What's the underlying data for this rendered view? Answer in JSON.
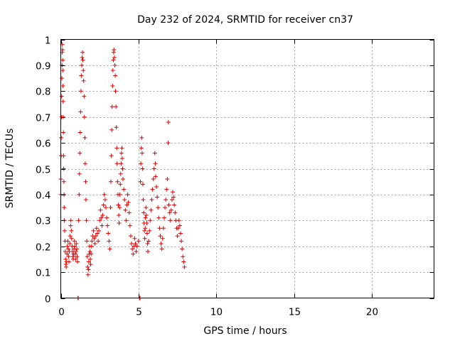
{
  "chart_data": {
    "type": "scatter",
    "title": "Day 232 of 2024, SRMTID for receiver cn37",
    "xlabel": "GPS time / hours",
    "ylabel": "SRMTID / TECUs",
    "xlim": [
      0,
      24
    ],
    "ylim": [
      0,
      1
    ],
    "xticks": [
      0,
      5,
      10,
      15,
      20
    ],
    "xtick_labels": [
      "0",
      "5",
      "10",
      "15",
      "20"
    ],
    "yticks": [
      0,
      0.1,
      0.2,
      0.3,
      0.4,
      0.5,
      0.6,
      0.7,
      0.8,
      0.9,
      1
    ],
    "ytick_labels": [
      "0",
      "0.1",
      "0.2",
      "0.3",
      "0.4",
      "0.5",
      "0.6",
      "0.7",
      "0.8",
      "0.9",
      "1"
    ],
    "grid": true,
    "marker": "+",
    "color": "#e00000",
    "series": [
      {
        "name": "cn37",
        "points": [
          [
            0.0,
            0.4
          ],
          [
            0.0,
            0.46
          ],
          [
            0.02,
            0.55
          ],
          [
            0.03,
            0.62
          ],
          [
            0.05,
            0.7
          ],
          [
            0.06,
            0.78
          ],
          [
            0.07,
            0.85
          ],
          [
            0.08,
            0.9
          ],
          [
            0.09,
            0.95
          ],
          [
            0.1,
            0.98
          ],
          [
            0.11,
            0.96
          ],
          [
            0.12,
            0.92
          ],
          [
            0.13,
            0.88
          ],
          [
            0.14,
            0.82
          ],
          [
            0.15,
            0.76
          ],
          [
            0.16,
            0.7
          ],
          [
            0.17,
            0.64
          ],
          [
            0.18,
            0.55
          ],
          [
            0.19,
            0.5
          ],
          [
            0.2,
            0.45
          ],
          [
            0.21,
            0.4
          ],
          [
            0.22,
            0.35
          ],
          [
            0.23,
            0.3
          ],
          [
            0.25,
            0.26
          ],
          [
            0.27,
            0.22
          ],
          [
            0.29,
            0.18
          ],
          [
            0.31,
            0.15
          ],
          [
            0.33,
            0.13
          ],
          [
            0.35,
            0.12
          ],
          [
            0.38,
            0.14
          ],
          [
            0.4,
            0.17
          ],
          [
            0.42,
            0.2
          ],
          [
            0.45,
            0.22
          ],
          [
            0.48,
            0.19
          ],
          [
            0.5,
            0.16
          ],
          [
            0.53,
            0.14
          ],
          [
            0.55,
            0.18
          ],
          [
            0.58,
            0.21
          ],
          [
            0.6,
            0.24
          ],
          [
            0.63,
            0.28
          ],
          [
            0.65,
            0.3
          ],
          [
            0.68,
            0.26
          ],
          [
            0.7,
            0.23
          ],
          [
            0.73,
            0.2
          ],
          [
            0.75,
            0.18
          ],
          [
            0.78,
            0.16
          ],
          [
            0.8,
            0.15
          ],
          [
            0.83,
            0.17
          ],
          [
            0.85,
            0.19
          ],
          [
            0.88,
            0.22
          ],
          [
            0.9,
            0.2
          ],
          [
            0.93,
            0.17
          ],
          [
            0.95,
            0.15
          ],
          [
            0.98,
            0.18
          ],
          [
            1.0,
            0.21
          ],
          [
            1.03,
            0.19
          ],
          [
            1.05,
            0.16
          ],
          [
            1.08,
            0.14
          ],
          [
            1.1,
            0.0
          ],
          [
            1.12,
            0.0
          ],
          [
            1.15,
            0.3
          ],
          [
            1.18,
            0.4
          ],
          [
            1.2,
            0.48
          ],
          [
            1.22,
            0.56
          ],
          [
            1.25,
            0.64
          ],
          [
            1.27,
            0.72
          ],
          [
            1.3,
            0.8
          ],
          [
            1.32,
            0.86
          ],
          [
            1.35,
            0.9
          ],
          [
            1.37,
            0.93
          ],
          [
            1.4,
            0.95
          ],
          [
            1.42,
            0.92
          ],
          [
            1.45,
            0.88
          ],
          [
            1.47,
            0.84
          ],
          [
            1.5,
            0.78
          ],
          [
            1.52,
            0.7
          ],
          [
            1.55,
            0.62
          ],
          [
            1.57,
            0.52
          ],
          [
            1.6,
            0.45
          ],
          [
            1.62,
            0.38
          ],
          [
            1.65,
            0.3
          ],
          [
            1.67,
            0.22
          ],
          [
            1.7,
            0.16
          ],
          [
            1.72,
            0.12
          ],
          [
            1.75,
            0.09
          ],
          [
            1.78,
            0.11
          ],
          [
            1.8,
            0.14
          ],
          [
            1.82,
            0.17
          ],
          [
            1.85,
            0.2
          ],
          [
            1.88,
            0.18
          ],
          [
            1.9,
            0.15
          ],
          [
            1.92,
            0.13
          ],
          [
            1.95,
            0.17
          ],
          [
            1.98,
            0.2
          ],
          [
            2.0,
            0.22
          ],
          [
            2.05,
            0.24
          ],
          [
            2.1,
            0.26
          ],
          [
            2.15,
            0.23
          ],
          [
            2.2,
            0.21
          ],
          [
            2.25,
            0.24
          ],
          [
            2.3,
            0.27
          ],
          [
            2.35,
            0.25
          ],
          [
            2.4,
            0.22
          ],
          [
            2.45,
            0.26
          ],
          [
            2.5,
            0.3
          ],
          [
            2.55,
            0.34
          ],
          [
            2.6,
            0.31
          ],
          [
            2.65,
            0.28
          ],
          [
            2.7,
            0.32
          ],
          [
            2.75,
            0.36
          ],
          [
            2.8,
            0.4
          ],
          [
            2.85,
            0.38
          ],
          [
            2.9,
            0.35
          ],
          [
            2.95,
            0.31
          ],
          [
            3.0,
            0.28
          ],
          [
            3.05,
            0.25
          ],
          [
            3.1,
            0.22
          ],
          [
            3.15,
            0.19
          ],
          [
            3.2,
            0.35
          ],
          [
            3.22,
            0.45
          ],
          [
            3.25,
            0.55
          ],
          [
            3.28,
            0.65
          ],
          [
            3.3,
            0.74
          ],
          [
            3.33,
            0.82
          ],
          [
            3.35,
            0.88
          ],
          [
            3.38,
            0.92
          ],
          [
            3.4,
            0.95
          ],
          [
            3.42,
            0.96
          ],
          [
            3.45,
            0.93
          ],
          [
            3.48,
            0.9
          ],
          [
            3.5,
            0.86
          ],
          [
            3.52,
            0.8
          ],
          [
            3.55,
            0.74
          ],
          [
            3.57,
            0.66
          ],
          [
            3.6,
            0.58
          ],
          [
            3.62,
            0.52
          ],
          [
            3.65,
            0.45
          ],
          [
            3.68,
            0.4
          ],
          [
            3.7,
            0.36
          ],
          [
            3.73,
            0.32
          ],
          [
            3.75,
            0.29
          ],
          [
            3.78,
            0.35
          ],
          [
            3.8,
            0.4
          ],
          [
            3.83,
            0.44
          ],
          [
            3.85,
            0.48
          ],
          [
            3.88,
            0.52
          ],
          [
            3.9,
            0.56
          ],
          [
            3.93,
            0.58
          ],
          [
            3.95,
            0.54
          ],
          [
            3.98,
            0.5
          ],
          [
            4.0,
            0.46
          ],
          [
            4.05,
            0.42
          ],
          [
            4.1,
            0.38
          ],
          [
            4.15,
            0.34
          ],
          [
            4.2,
            0.3
          ],
          [
            4.25,
            0.36
          ],
          [
            4.3,
            0.4
          ],
          [
            4.35,
            0.37
          ],
          [
            4.4,
            0.33
          ],
          [
            4.45,
            0.28
          ],
          [
            4.5,
            0.24
          ],
          [
            4.55,
            0.21
          ],
          [
            4.6,
            0.19
          ],
          [
            4.65,
            0.17
          ],
          [
            4.7,
            0.2
          ],
          [
            4.75,
            0.23
          ],
          [
            4.8,
            0.21
          ],
          [
            4.85,
            0.18
          ],
          [
            4.9,
            0.2
          ],
          [
            5.0,
            0.22
          ],
          [
            5.05,
            0.0
          ],
          [
            5.1,
            0.0
          ],
          [
            5.12,
            0.45
          ],
          [
            5.15,
            0.52
          ],
          [
            5.18,
            0.58
          ],
          [
            5.2,
            0.62
          ],
          [
            5.23,
            0.56
          ],
          [
            5.25,
            0.5
          ],
          [
            5.28,
            0.44
          ],
          [
            5.3,
            0.38
          ],
          [
            5.33,
            0.33
          ],
          [
            5.35,
            0.29
          ],
          [
            5.38,
            0.26
          ],
          [
            5.4,
            0.23
          ],
          [
            5.43,
            0.27
          ],
          [
            5.45,
            0.31
          ],
          [
            5.48,
            0.35
          ],
          [
            5.5,
            0.32
          ],
          [
            5.53,
            0.29
          ],
          [
            5.55,
            0.25
          ],
          [
            5.58,
            0.21
          ],
          [
            5.6,
            0.18
          ],
          [
            5.65,
            0.22
          ],
          [
            5.7,
            0.26
          ],
          [
            5.75,
            0.3
          ],
          [
            5.8,
            0.34
          ],
          [
            5.85,
            0.38
          ],
          [
            5.9,
            0.42
          ],
          [
            5.95,
            0.46
          ],
          [
            6.0,
            0.5
          ],
          [
            6.05,
            0.56
          ],
          [
            6.08,
            0.52
          ],
          [
            6.1,
            0.47
          ],
          [
            6.15,
            0.43
          ],
          [
            6.2,
            0.39
          ],
          [
            6.25,
            0.35
          ],
          [
            6.3,
            0.31
          ],
          [
            6.35,
            0.27
          ],
          [
            6.4,
            0.24
          ],
          [
            6.45,
            0.21
          ],
          [
            6.5,
            0.19
          ],
          [
            6.55,
            0.23
          ],
          [
            6.6,
            0.27
          ],
          [
            6.65,
            0.31
          ],
          [
            6.7,
            0.35
          ],
          [
            6.75,
            0.38
          ],
          [
            6.8,
            0.42
          ],
          [
            6.85,
            0.46
          ],
          [
            6.9,
            0.6
          ],
          [
            6.92,
            0.68
          ],
          [
            6.95,
            0.36
          ],
          [
            7.0,
            0.33
          ],
          [
            7.05,
            0.3
          ],
          [
            7.1,
            0.34
          ],
          [
            7.15,
            0.38
          ],
          [
            7.2,
            0.41
          ],
          [
            7.25,
            0.39
          ],
          [
            7.3,
            0.36
          ],
          [
            7.35,
            0.33
          ],
          [
            7.4,
            0.3
          ],
          [
            7.45,
            0.27
          ],
          [
            7.5,
            0.24
          ],
          [
            7.55,
            0.27
          ],
          [
            7.6,
            0.3
          ],
          [
            7.65,
            0.28
          ],
          [
            7.7,
            0.25
          ],
          [
            7.75,
            0.22
          ],
          [
            7.8,
            0.19
          ],
          [
            7.85,
            0.16
          ],
          [
            7.9,
            0.14
          ],
          [
            7.95,
            0.12
          ]
        ]
      }
    ]
  }
}
